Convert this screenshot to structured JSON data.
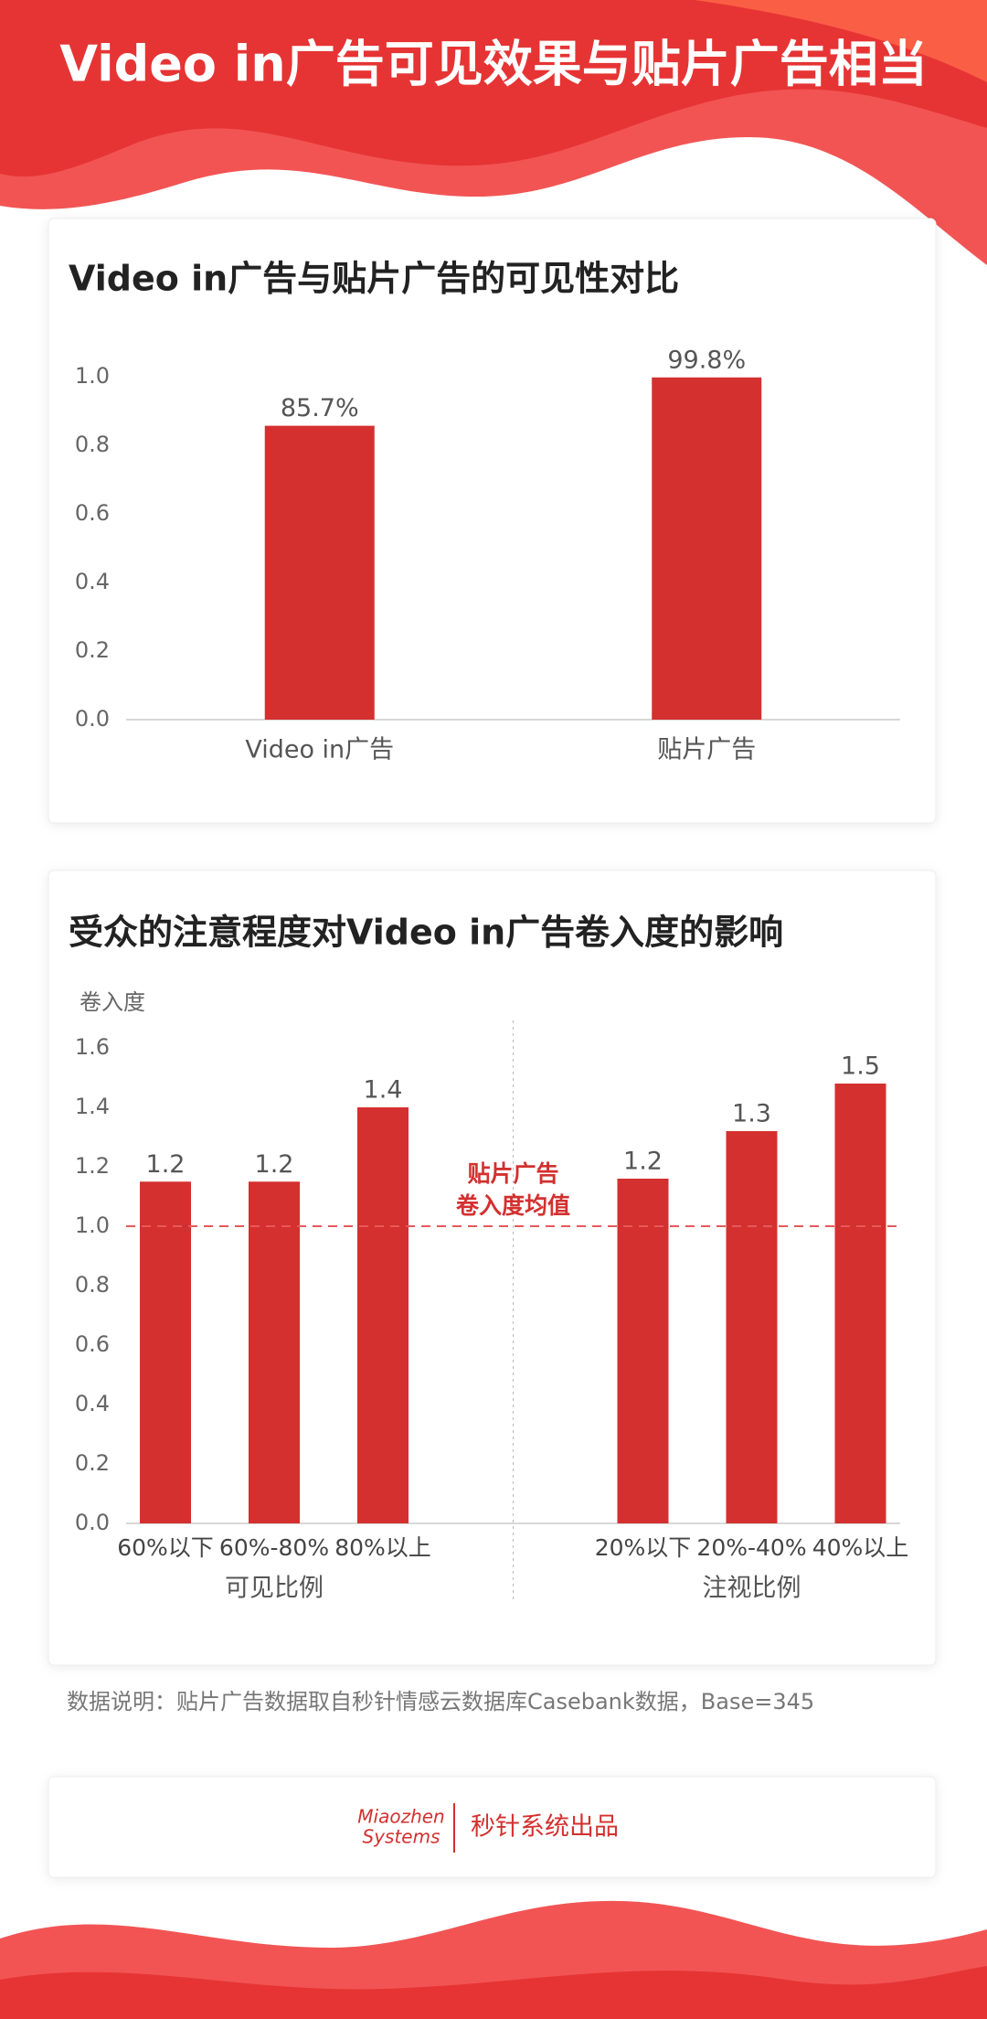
{
  "header": {
    "title": "Video in广告可见效果与贴片广告相当"
  },
  "chart_data": [
    {
      "type": "bar",
      "title": "Video in广告与贴片广告的可见性对比",
      "categories": [
        "Video in广告",
        "贴片广告"
      ],
      "values": [
        0.857,
        0.998
      ],
      "value_labels": [
        "85.7%",
        "99.8%"
      ],
      "color": "#d3302f",
      "ylim": [
        0,
        1.0
      ],
      "yticks": [
        {
          "value": 0,
          "label": "0.0"
        },
        {
          "value": 0.2,
          "label": "0.2"
        },
        {
          "value": 0.4,
          "label": "0.4"
        },
        {
          "value": 0.6,
          "label": "0.6"
        },
        {
          "value": 0.8,
          "label": "0.8"
        },
        {
          "value": 1.0,
          "label": "1.0"
        }
      ]
    },
    {
      "type": "grouped-bar",
      "title": "受众的注意程度对Video in广告卷入度的影响",
      "ylabel": "卷入度",
      "groups": [
        "可见比例",
        "注视比例"
      ],
      "categories": [
        [
          "60%以下",
          "60%-80%",
          "80%以上"
        ],
        [
          "20%以下",
          "20%-40%",
          "40%以上"
        ]
      ],
      "values": [
        [
          1.15,
          1.15,
          1.4
        ],
        [
          1.16,
          1.32,
          1.48
        ]
      ],
      "value_labels": [
        [
          "1.2",
          "1.2",
          "1.4"
        ],
        [
          "1.2",
          "1.3",
          "1.5"
        ]
      ],
      "color": "#d3302f",
      "reference": {
        "value": 1.0,
        "label": [
          "贴片广告",
          "卷入度均值"
        ],
        "color": "#e8585a"
      },
      "ylim": [
        0,
        1.6
      ],
      "yticks": [
        {
          "value": 0,
          "label": "0.0"
        },
        {
          "value": 0.2,
          "label": "0.2"
        },
        {
          "value": 0.4,
          "label": "0.4"
        },
        {
          "value": 0.6,
          "label": "0.6"
        },
        {
          "value": 0.8,
          "label": "0.8"
        },
        {
          "value": 1.0,
          "label": "1.0"
        },
        {
          "value": 1.2,
          "label": "1.2"
        },
        {
          "value": 1.4,
          "label": "1.4"
        },
        {
          "value": 1.6,
          "label": "1.6"
        }
      ]
    }
  ],
  "note": "数据说明：贴片广告数据取自秒针情感云数据库Casebank数据，Base=345",
  "footer": {
    "logo": [
      "Miaozhen",
      "Systems"
    ],
    "text": "秒针系统出品"
  }
}
